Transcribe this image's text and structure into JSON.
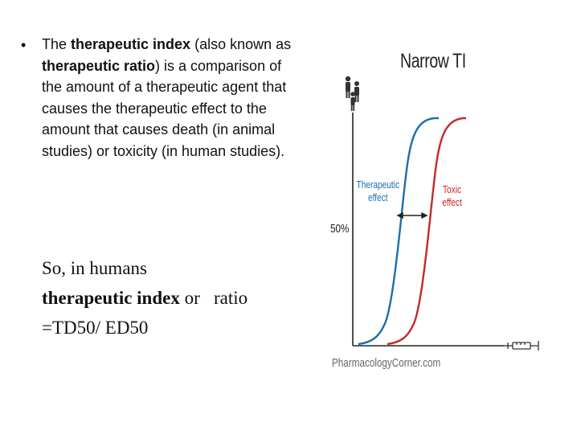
{
  "bullet": {
    "p1": "The ",
    "b1": "therapeutic index",
    "p2": " (also known as ",
    "b2": "therapeutic ratio",
    "p3": ") is a comparison of the amount of a therapeutic agent that causes the therapeutic effect to the amount that causes death (in animal studies) or toxicity (in human studies)."
  },
  "formula": {
    "line1": "So, in humans",
    "bold": "therapeutic index",
    "line2_rest": " or   ratio",
    "line3": "=TD50/ ED50"
  },
  "figure": {
    "title": "Narrow TI",
    "fifty_label": "50%",
    "therapeutic_label_1": "Therapeutic",
    "therapeutic_label_2": "effect",
    "toxic_label_1": "Toxic",
    "toxic_label_2": "effect",
    "watermark": "PharmacologyCorner.com",
    "icons": [
      "people-icon",
      "syringe-icon"
    ],
    "colors": {
      "therapeutic": "#1a6fae",
      "toxic": "#c62828"
    }
  }
}
